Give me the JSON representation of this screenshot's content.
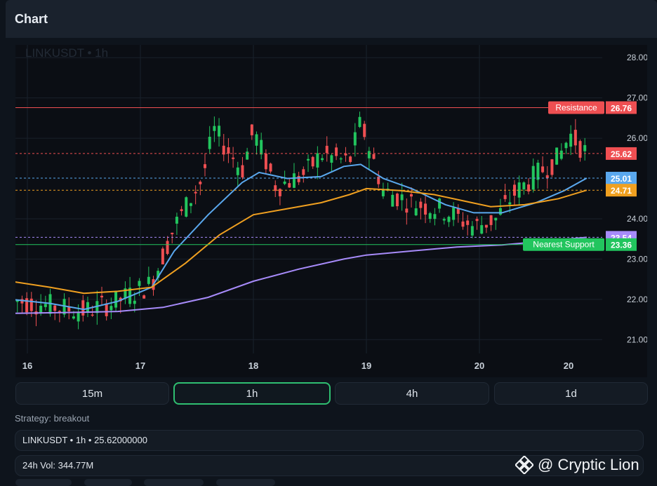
{
  "header": {
    "title": "Chart"
  },
  "chart": {
    "symbol_label": "LINKUSDT • 1h",
    "y_ticks": [
      "28.00",
      "27.00",
      "26.00",
      "24.00",
      "23.00",
      "22.00",
      "21.00"
    ],
    "x_ticks": [
      "16",
      "17",
      "18",
      "19",
      "20",
      "20"
    ],
    "levels": [
      {
        "label": "Resistance",
        "value": "26.76",
        "color": "#ef4f52"
      },
      {
        "label": "",
        "value": "25.62",
        "color": "#ef4f52"
      },
      {
        "label": "",
        "value": "25.01",
        "color": "#5aa8ee"
      },
      {
        "label": "",
        "value": "24.71",
        "color": "#f0a020"
      },
      {
        "label": "",
        "value": "23.54",
        "color": "#a78bfa"
      },
      {
        "label": "Nearest Support",
        "value": "23.36",
        "color": "#22c55e"
      }
    ]
  },
  "chart_data": {
    "type": "line",
    "ylim": [
      20.5,
      28.3
    ],
    "x_day_ticks": [
      16,
      17,
      18,
      19,
      20,
      20
    ],
    "series": [
      {
        "color": "#5aa8ee",
        "points": [
          [
            15.85,
            22.0
          ],
          [
            16.2,
            21.9
          ],
          [
            16.5,
            21.75
          ],
          [
            16.8,
            21.95
          ],
          [
            17.1,
            22.3
          ],
          [
            17.3,
            23.2
          ],
          [
            17.6,
            24.1
          ],
          [
            17.9,
            24.9
          ],
          [
            18.05,
            25.15
          ],
          [
            18.3,
            25.0
          ],
          [
            18.6,
            25.05
          ],
          [
            18.8,
            25.3
          ],
          [
            18.95,
            25.35
          ],
          [
            19.15,
            25.0
          ],
          [
            19.4,
            24.75
          ],
          [
            19.7,
            24.35
          ],
          [
            19.95,
            24.15
          ],
          [
            20.2,
            24.15
          ],
          [
            20.5,
            24.4
          ],
          [
            20.75,
            24.7
          ],
          [
            20.95,
            25.01
          ]
        ]
      },
      {
        "color": "#f0a020",
        "points": [
          [
            15.85,
            22.45
          ],
          [
            16.2,
            22.3
          ],
          [
            16.5,
            22.15
          ],
          [
            16.8,
            22.2
          ],
          [
            17.1,
            22.3
          ],
          [
            17.4,
            22.9
          ],
          [
            17.7,
            23.6
          ],
          [
            18.0,
            24.1
          ],
          [
            18.3,
            24.25
          ],
          [
            18.6,
            24.4
          ],
          [
            18.85,
            24.6
          ],
          [
            19.0,
            24.75
          ],
          [
            19.3,
            24.7
          ],
          [
            19.6,
            24.6
          ],
          [
            19.85,
            24.45
          ],
          [
            20.1,
            24.3
          ],
          [
            20.4,
            24.35
          ],
          [
            20.7,
            24.5
          ],
          [
            20.95,
            24.71
          ]
        ]
      },
      {
        "color": "#a78bfa",
        "points": [
          [
            15.85,
            21.65
          ],
          [
            16.3,
            21.67
          ],
          [
            16.8,
            21.7
          ],
          [
            17.2,
            21.8
          ],
          [
            17.6,
            22.05
          ],
          [
            18.0,
            22.45
          ],
          [
            18.4,
            22.75
          ],
          [
            18.8,
            23.0
          ],
          [
            19.0,
            23.1
          ],
          [
            19.4,
            23.2
          ],
          [
            19.8,
            23.3
          ],
          [
            20.2,
            23.35
          ],
          [
            20.6,
            23.45
          ],
          [
            20.95,
            23.54
          ]
        ]
      }
    ]
  },
  "timeframes": [
    "15m",
    "1h",
    "4h",
    "1d"
  ],
  "strategy": "Strategy: breakout",
  "info_line": "LINKUSDT • 1h • 25.62000000",
  "volume": "24h Vol: 344.77M",
  "watermark": {
    "icon": "binance-diamond-icon",
    "text": "@ Cryptic Lion"
  }
}
